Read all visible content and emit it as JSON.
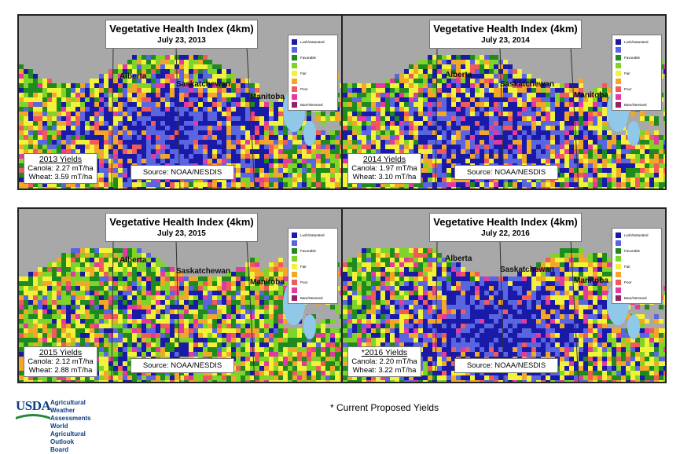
{
  "legend": [
    {
      "label": "Lush/Saturated",
      "color": "#1a1aa8"
    },
    {
      "label": "",
      "color": "#5a66e0"
    },
    {
      "label": "Favorable",
      "color": "#1f8a1f"
    },
    {
      "label": "",
      "color": "#7fd42a"
    },
    {
      "label": "Fair",
      "color": "#f2f23a"
    },
    {
      "label": "",
      "color": "#f2a62a"
    },
    {
      "label": "Poor",
      "color": "#f25a5a"
    },
    {
      "label": "",
      "color": "#e23aa0"
    },
    {
      "label": "Bare/Stressed",
      "color": "#9a1f6a"
    }
  ],
  "provinces": {
    "alberta": "Alberta",
    "saskatchewan": "Saskatchewan",
    "manitoba": "Manitoba"
  },
  "panels": [
    {
      "title": "Vegetative Health Index (4km)",
      "date": "July 23, 2013",
      "yields_title": "2013 Yields",
      "canola": "Canola: 2.27 mT/ha",
      "wheat": "Wheat: 3.59 mT/ha",
      "source": "Source: NOAA/NESDIS"
    },
    {
      "title": "Vegetative Health Index (4km)",
      "date": "July 23, 2014",
      "yields_title": "2014 Yields",
      "canola": "Canola: 1.97 mT/ha",
      "wheat": "Wheat: 3.10 mT/ha",
      "source": "Source: NOAA/NESDIS"
    },
    {
      "title": "Vegetative Health Index (4km)",
      "date": "July 23, 2015",
      "yields_title": "2015 Yields",
      "canola": "Canola: 2.12 mT/ha",
      "wheat": "Wheat: 2.88 mT/ha",
      "source": "Source: NOAA/NESDIS"
    },
    {
      "title": "Vegetative Health Index (4km)",
      "date": "July 22, 2016",
      "yields_title": "*2016 Yields",
      "canola": "Canola: 2.20 mT/ha",
      "wheat": "Wheat: 3.22 mT/ha",
      "source": "Source: NOAA/NESDIS"
    }
  ],
  "footer": {
    "logo_text": "USDA",
    "line1": "Agricultural Weather Assessments",
    "line2": "World Agricultural Outlook Board",
    "note": "* Current Proposed Yields"
  }
}
